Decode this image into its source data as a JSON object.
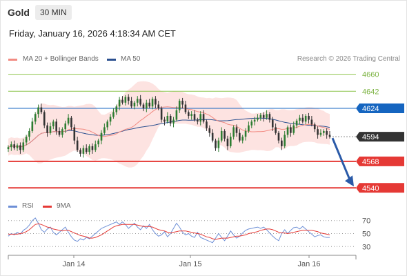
{
  "header": {
    "instrument": "Gold",
    "timeframe": "30 MIN",
    "timestamp": "Friday, January 16, 2026 4:18:34 AM CET"
  },
  "legend": {
    "ma20_label": "MA 20 + Bollinger Bands",
    "ma50_label": "MA 50",
    "credit": "Research © 2026 Trading Central",
    "rsi_label": "RSI",
    "rsi_ma_label": "9MA"
  },
  "colors": {
    "ma20": "#f28b82",
    "ma50": "#2a4f8f",
    "band_fill": "#fde3e1",
    "candle_up": "#2e7d32",
    "candle_down": "#333333",
    "resistance": "#8bc34a",
    "pivot": "#1565c0",
    "support": "#e53935",
    "last": "#333333",
    "rsi": "#6d8fd6",
    "rsi_ma": "#e53935",
    "arrow": "#2a5aa8"
  },
  "chart_data": [
    {
      "type": "candlestick",
      "title": "Gold",
      "interval": "30 MIN",
      "x_labels": [
        "Jan 14",
        "Jan 15",
        "Jan 16"
      ],
      "ylim": [
        4530,
        4667
      ],
      "levels": [
        {
          "value": 4660,
          "label": "4660",
          "kind": "resistance"
        },
        {
          "value": 4642,
          "label": "4642",
          "kind": "resistance"
        },
        {
          "value": 4624,
          "label": "4624",
          "kind": "pivot"
        },
        {
          "value": 4594,
          "label": "4594",
          "kind": "last"
        },
        {
          "value": 4568,
          "label": "4568",
          "kind": "support"
        },
        {
          "value": 4540,
          "label": "4540",
          "kind": "support"
        }
      ],
      "projection": {
        "from": 4594,
        "to": 4540
      },
      "ohlc_close": [
        4583,
        4586,
        4582,
        4585,
        4580,
        4588,
        4594,
        4600,
        4610,
        4618,
        4625,
        4620,
        4606,
        4598,
        4605,
        4610,
        4600,
        4596,
        4602,
        4608,
        4614,
        4604,
        4590,
        4580,
        4576,
        4582,
        4578,
        4584,
        4580,
        4586,
        4590,
        4598,
        4604,
        4610,
        4615,
        4620,
        4626,
        4633,
        4630,
        4636,
        4632,
        4626,
        4630,
        4634,
        4628,
        4624,
        4630,
        4626,
        4634,
        4628,
        4624,
        4612,
        4610,
        4616,
        4608,
        4612,
        4622,
        4632,
        4628,
        4620,
        4616,
        4618,
        4612,
        4610,
        4618,
        4610,
        4603,
        4598,
        4590,
        4582,
        4590,
        4600,
        4592,
        4584,
        4594,
        4604,
        4598,
        4590,
        4594,
        4600,
        4606,
        4610,
        4612,
        4614,
        4617,
        4614,
        4618,
        4612,
        4604,
        4598,
        4590,
        4584,
        4596,
        4604,
        4598,
        4606,
        4611,
        4614,
        4610,
        4616,
        4612,
        4607,
        4602,
        4596,
        4598,
        4600,
        4596,
        4594
      ]
    },
    {
      "type": "line",
      "title": "RSI",
      "ylim": [
        25,
        75
      ],
      "y_ticks": [
        30,
        50,
        70
      ],
      "series": [
        {
          "name": "RSI",
          "values": [
            46,
            50,
            48,
            52,
            49,
            55,
            58,
            63,
            70,
            74,
            66,
            56,
            52,
            57,
            60,
            52,
            48,
            52,
            56,
            60,
            52,
            45,
            40,
            38,
            42,
            40,
            44,
            42,
            46,
            50,
            54,
            58,
            60,
            62,
            64,
            66,
            68,
            64,
            68,
            64,
            58,
            62,
            66,
            60,
            56,
            62,
            58,
            64,
            56,
            50,
            46,
            48,
            53,
            45,
            50,
            58,
            66,
            60,
            52,
            48,
            50,
            46,
            44,
            52,
            44,
            42,
            40,
            38,
            36,
            43,
            50,
            44,
            39,
            46,
            54,
            48,
            43,
            46,
            51,
            55,
            57,
            58,
            59,
            60,
            58,
            60,
            56,
            51,
            46,
            42,
            39,
            50,
            56,
            50,
            55,
            59,
            60,
            57,
            61,
            57,
            53,
            49,
            45,
            47,
            48,
            45,
            44,
            44
          ]
        },
        {
          "name": "9MA",
          "values": [
            49,
            49,
            49,
            49,
            50,
            51,
            53,
            56,
            60,
            64,
            65,
            64,
            62,
            60,
            59,
            57,
            56,
            55,
            54,
            55,
            55,
            53,
            51,
            49,
            47,
            46,
            45,
            43,
            43,
            44,
            46,
            48,
            51,
            54,
            57,
            60,
            62,
            63,
            64,
            64,
            64,
            64,
            64,
            63,
            62,
            61,
            61,
            61,
            60,
            58,
            56,
            55,
            54,
            52,
            51,
            52,
            53,
            54,
            54,
            54,
            53,
            52,
            51,
            50,
            49,
            47,
            45,
            44,
            42,
            41,
            42,
            43,
            43,
            43,
            44,
            45,
            46,
            46,
            47,
            48,
            50,
            51,
            52,
            53,
            55,
            56,
            57,
            57,
            56,
            54,
            52,
            51,
            51,
            50,
            51,
            52,
            53,
            54,
            55,
            55,
            55,
            55,
            54,
            53,
            51,
            50,
            49,
            48
          ]
        }
      ]
    }
  ]
}
